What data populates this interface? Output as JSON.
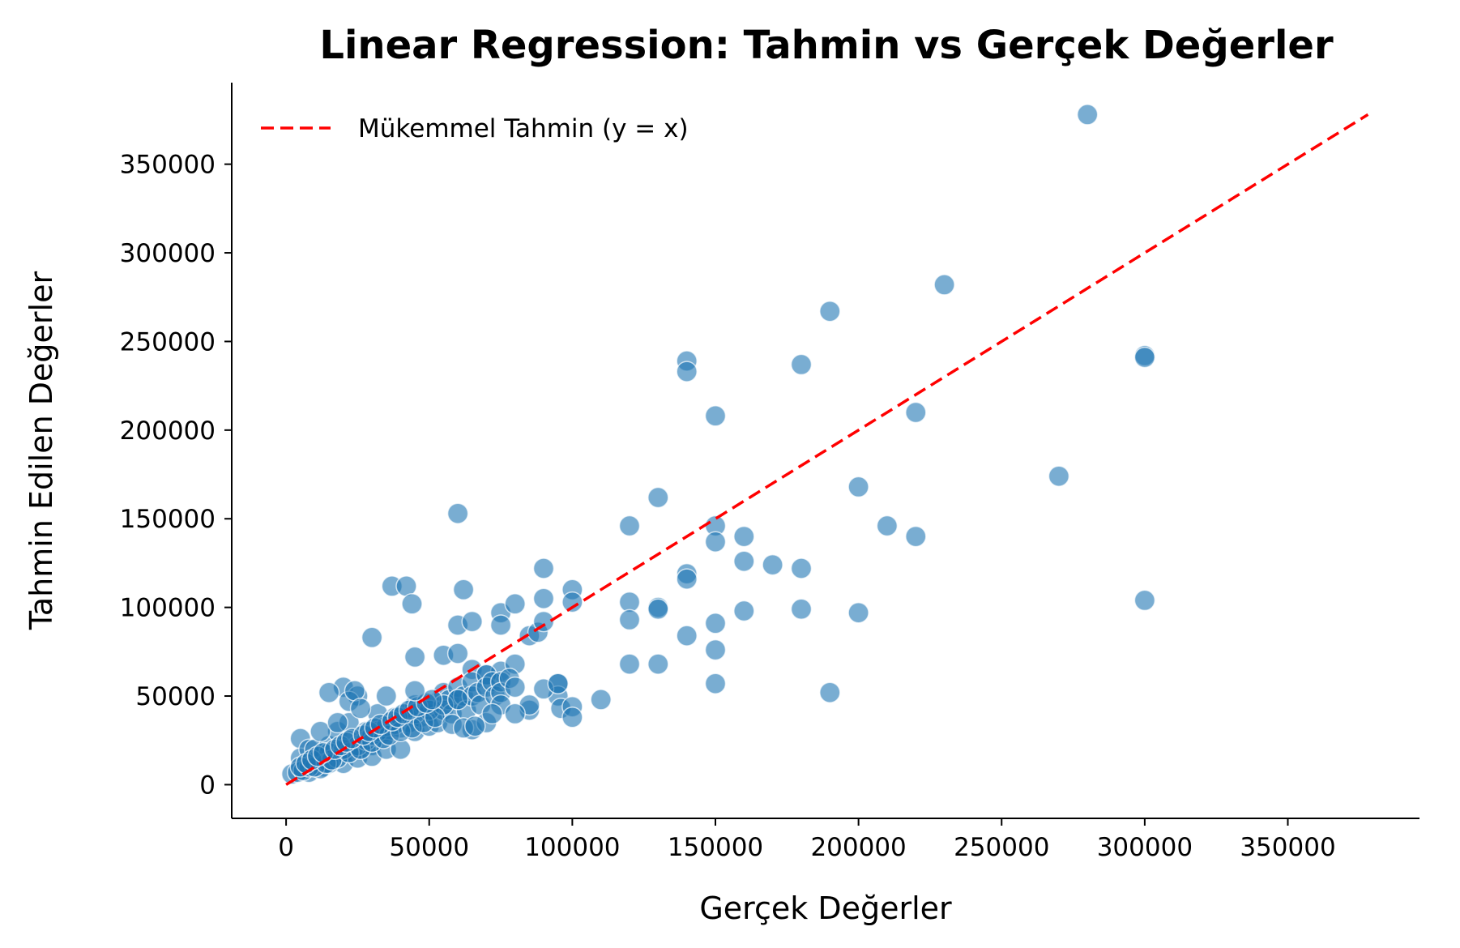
{
  "chart_data": {
    "type": "scatter",
    "title": "Linear Regression: Tahmin vs Gerçek Değerler",
    "xlabel": "Gerçek Değerler",
    "ylabel": "Tahmin Edilen Değerler",
    "xlim": [
      -19000,
      396000
    ],
    "ylim": [
      -19000,
      396000
    ],
    "x_ticks": [
      0,
      50000,
      100000,
      150000,
      200000,
      250000,
      300000,
      350000
    ],
    "y_ticks": [
      0,
      50000,
      100000,
      150000,
      200000,
      250000,
      300000,
      350000
    ],
    "x_tick_labels": [
      "0",
      "50000",
      "100000",
      "150000",
      "200000",
      "250000",
      "300000",
      "350000"
    ],
    "y_tick_labels": [
      "0",
      "50000",
      "100000",
      "150000",
      "200000",
      "250000",
      "300000",
      "350000"
    ],
    "grid": false,
    "legend": {
      "placement": "top-left",
      "entries": [
        "Mükemmel Tahmin (y = x)"
      ]
    },
    "colors": {
      "points": "#1f77b4",
      "reference_line": "#ff0000",
      "axes": "#000000"
    },
    "series": [
      {
        "kind": "scatter",
        "x": [
          280000,
          230000,
          190000,
          140000,
          140000,
          180000,
          300000,
          300000,
          150000,
          220000,
          270000,
          200000,
          130000,
          120000,
          210000,
          220000,
          150000,
          150000,
          160000,
          160000,
          170000,
          180000,
          140000,
          140000,
          300000,
          180000,
          200000,
          120000,
          120000,
          130000,
          130000,
          150000,
          150000,
          140000,
          120000,
          130000,
          190000,
          110000,
          150000,
          160000,
          60000,
          90000,
          100000,
          100000,
          37000,
          42000,
          44000,
          62000,
          60000,
          65000,
          75000,
          75000,
          80000,
          85000,
          88000,
          90000,
          90000,
          95000,
          95000,
          96000,
          100000,
          100000,
          30000,
          45000,
          55000,
          60000,
          65000,
          70000,
          75000,
          80000,
          85000,
          85000,
          90000,
          95000,
          5000,
          5000,
          8000,
          10000,
          10000,
          12000,
          13000,
          15000,
          15000,
          18000,
          20000,
          20000,
          22000,
          22000,
          25000,
          25000,
          28000,
          30000,
          30000,
          32000,
          33000,
          35000,
          35000,
          38000,
          40000,
          40000,
          42000,
          43000,
          45000,
          45000,
          47000,
          48000,
          50000,
          50000,
          52000,
          53000,
          55000,
          55000,
          57000,
          58000,
          60000,
          60000,
          62000,
          63000,
          65000,
          65000,
          67000,
          68000,
          70000,
          70000,
          72000,
          73000,
          75000,
          75000,
          78000,
          80000,
          8000,
          12000,
          15000,
          18000,
          20000,
          25000,
          28000,
          30000,
          32000,
          35000,
          38000,
          40000,
          45000,
          50000,
          55000,
          60000,
          65000,
          70000,
          75000,
          80000,
          2000,
          4000,
          6000,
          8000,
          10000,
          14000,
          16000,
          22000,
          26000,
          30000,
          34000,
          36000,
          40000,
          44000,
          48000,
          52000,
          58000,
          62000,
          66000,
          72000,
          5000,
          7000,
          9000,
          11000,
          13000,
          17000,
          19000,
          21000,
          23000,
          27000,
          29000,
          31000,
          33000,
          37000,
          39000,
          41000,
          43000,
          46000,
          49000,
          51000,
          20000,
          25000,
          22000,
          24000,
          26000,
          15000,
          45000,
          12000,
          18000,
          35000
        ],
        "y": [
          378000,
          282000,
          267000,
          239000,
          233000,
          237000,
          242000,
          241000,
          208000,
          210000,
          174000,
          168000,
          162000,
          146000,
          146000,
          140000,
          146000,
          137000,
          140000,
          126000,
          124000,
          122000,
          119000,
          116000,
          104000,
          99000,
          97000,
          103000,
          93000,
          100000,
          99000,
          91000,
          76000,
          84000,
          68000,
          68000,
          52000,
          48000,
          57000,
          98000,
          153000,
          122000,
          110000,
          103000,
          112000,
          112000,
          102000,
          110000,
          90000,
          92000,
          97000,
          90000,
          102000,
          84000,
          86000,
          105000,
          92000,
          57000,
          50000,
          43000,
          44000,
          38000,
          83000,
          72000,
          73000,
          74000,
          65000,
          62000,
          64000,
          68000,
          42000,
          45000,
          54000,
          57000,
          26000,
          15000,
          20000,
          20000,
          13000,
          16000,
          10000,
          22000,
          18000,
          30000,
          18000,
          12000,
          35000,
          25000,
          20000,
          15000,
          30000,
          22000,
          16000,
          40000,
          28000,
          30000,
          20000,
          38000,
          32000,
          20000,
          40000,
          35000,
          45000,
          30000,
          38000,
          45000,
          40000,
          33000,
          46000,
          35000,
          52000,
          42000,
          48000,
          40000,
          55000,
          48000,
          50000,
          42000,
          58000,
          50000,
          52000,
          45000,
          62000,
          55000,
          58000,
          50000,
          58000,
          52000,
          60000,
          55000,
          7000,
          9000,
          12000,
          15000,
          20000,
          22000,
          25000,
          28000,
          30000,
          33000,
          34000,
          38000,
          40000,
          42000,
          45000,
          48000,
          31000,
          35000,
          45000,
          40000,
          6000,
          7000,
          8000,
          10000,
          10000,
          12000,
          14000,
          18000,
          20000,
          24000,
          26000,
          28000,
          30000,
          32000,
          35000,
          38000,
          34000,
          32000,
          33000,
          40000,
          10000,
          12000,
          14000,
          16000,
          18000,
          20000,
          22000,
          24000,
          26000,
          28000,
          30000,
          32000,
          34000,
          36000,
          38000,
          40000,
          42000,
          44000,
          46000,
          48000,
          55000,
          50000,
          47000,
          53000,
          43000,
          52000,
          53000,
          30000,
          35000,
          50000
        ]
      },
      {
        "kind": "line",
        "name": "Mükemmel Tahmin (y = x)",
        "x": [
          0,
          378000
        ],
        "y": [
          0,
          378000
        ]
      }
    ]
  }
}
